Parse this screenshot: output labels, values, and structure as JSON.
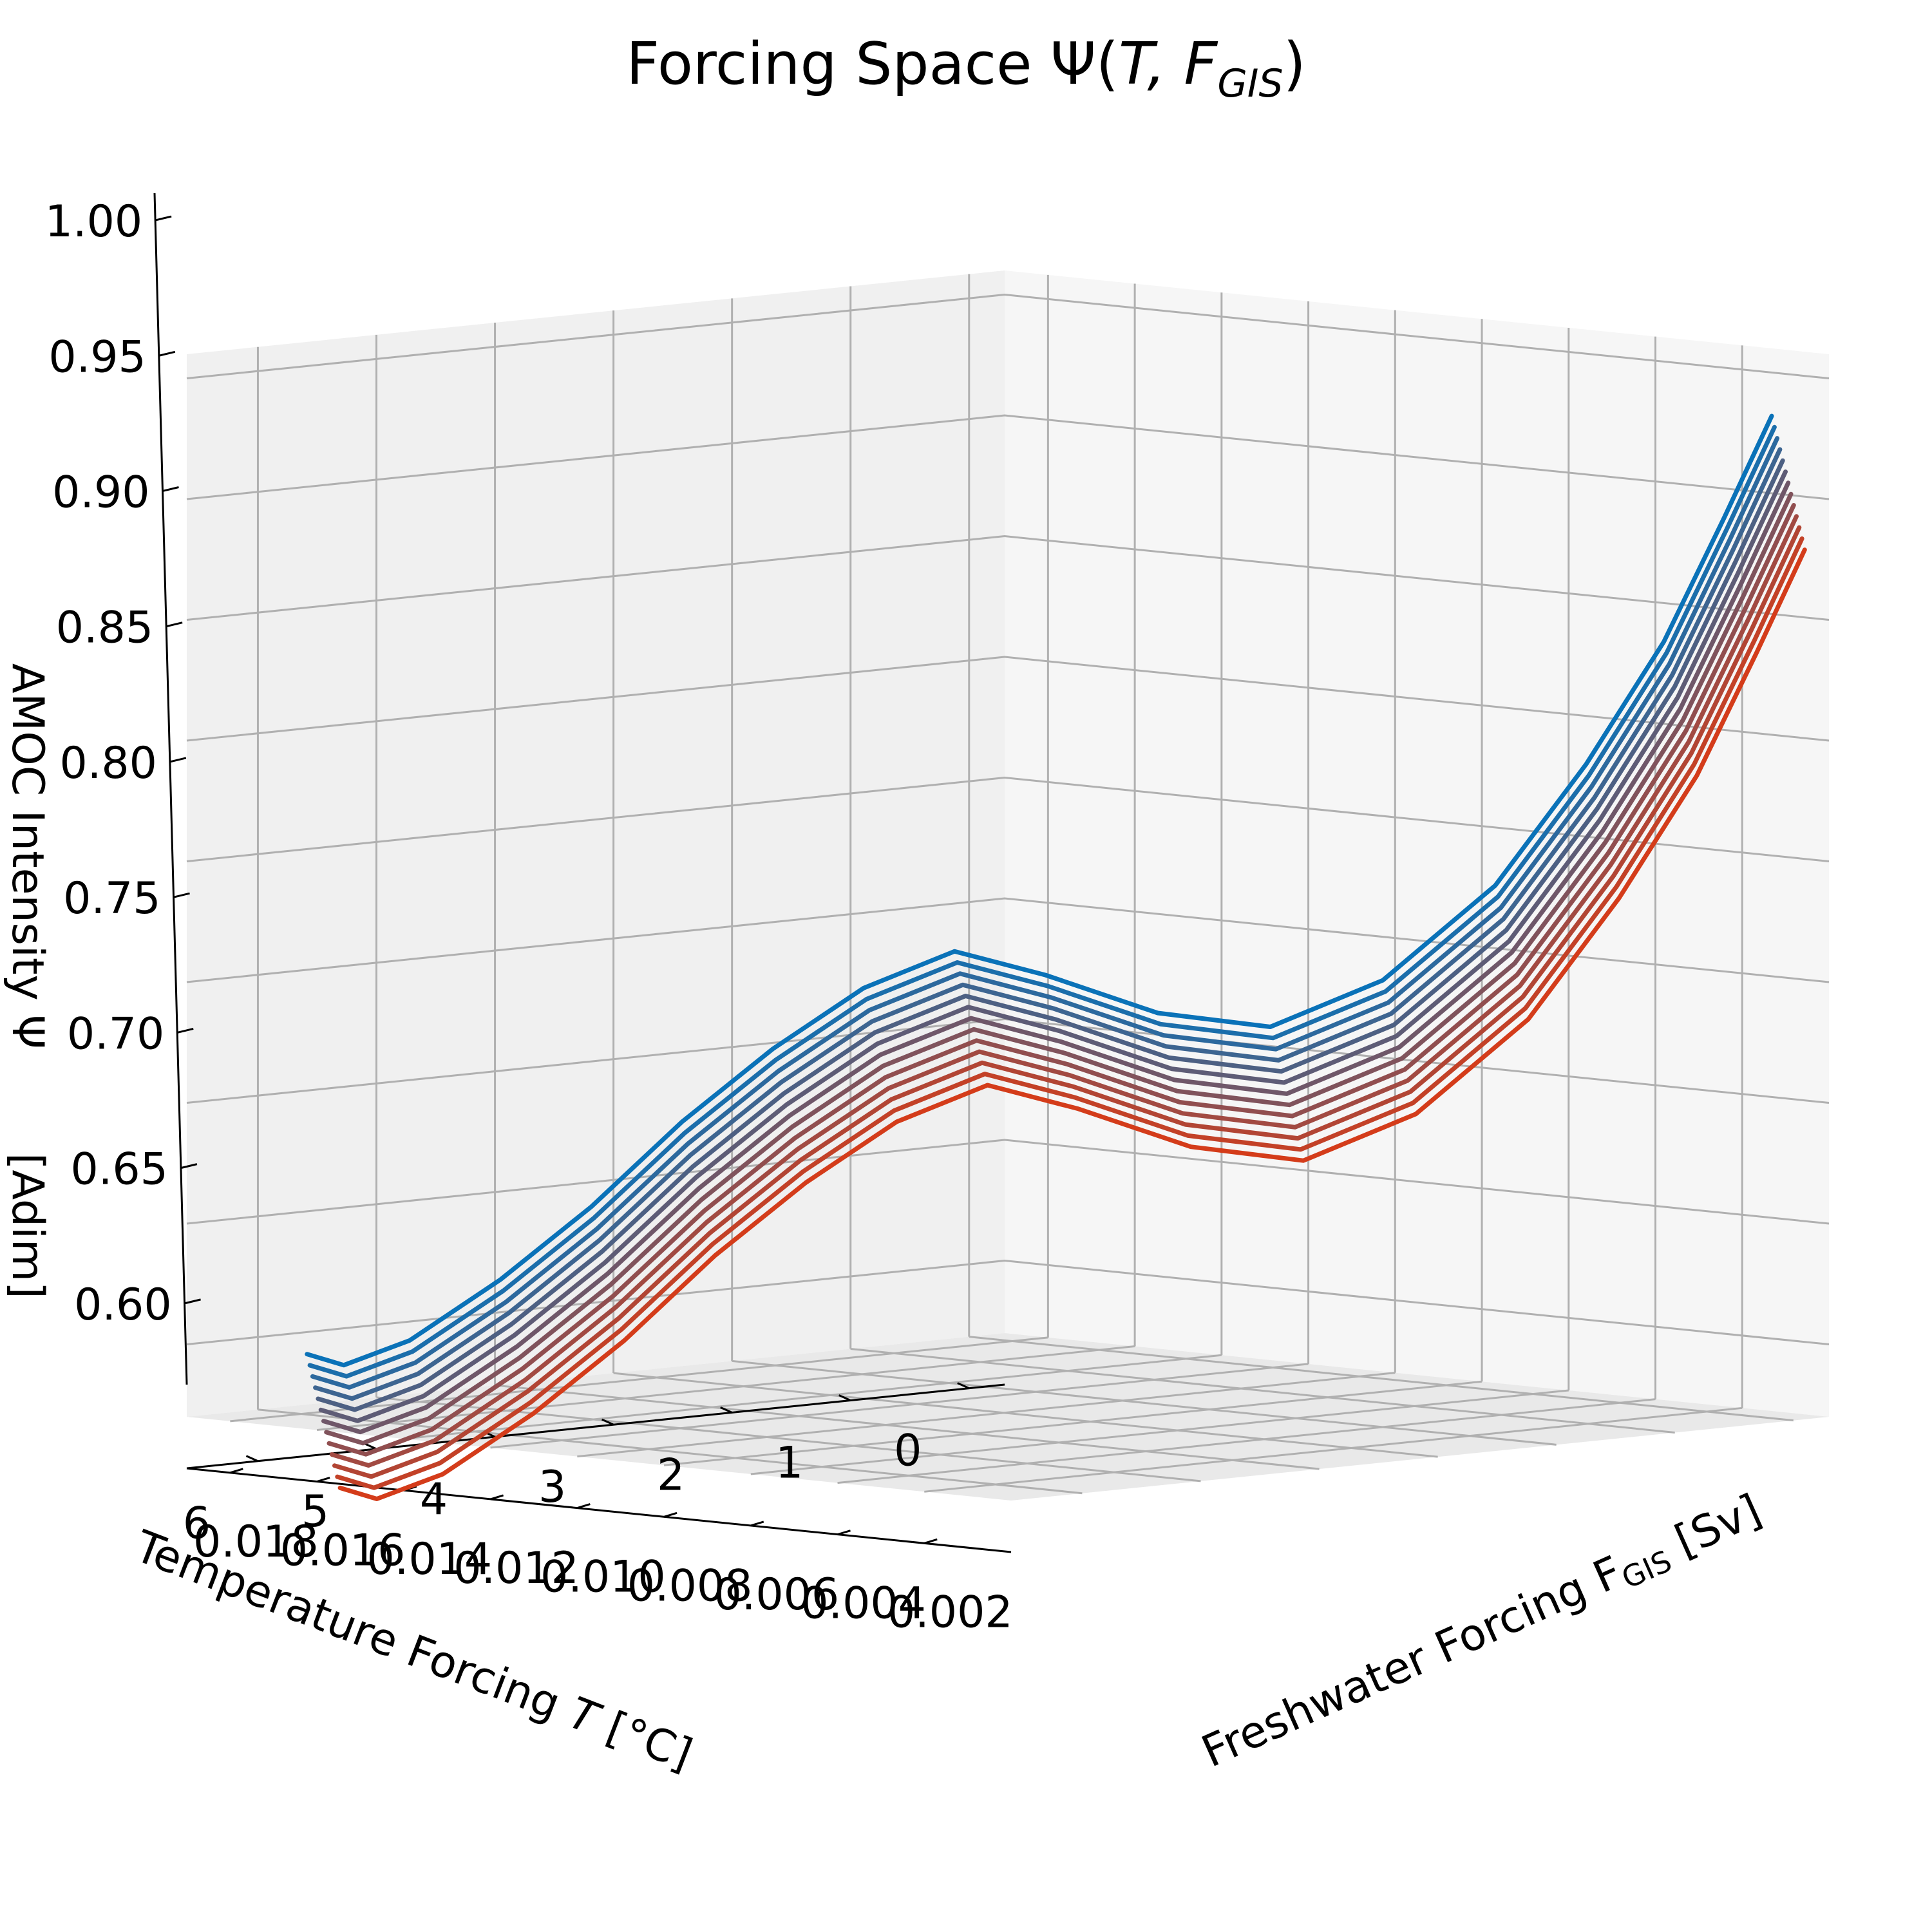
{
  "chart_data": {
    "type": "line",
    "title": "Forcing Space Ψ(T, F_GIS)",
    "title_parts": [
      "Forcing Space Ψ(",
      "T",
      ", F",
      "GIS",
      ")"
    ],
    "xlabel": "Temperature Forcing T   [°C]",
    "xlabel_parts": [
      "Temperature Forcing ",
      "T",
      "   [°C]"
    ],
    "ylabel": "Freshwater Forcing F_GIS [Sv]",
    "ylabel_parts": [
      "Freshwater Forcing F",
      "GIS",
      " [Sv]"
    ],
    "zlabel": "AMOC Intensity Ψ   [Adim]",
    "zlabel_parts": [
      "AMOC Intensity Ψ",
      "[Adim]"
    ],
    "x_ticks": [
      "0",
      "1",
      "2",
      "3",
      "4",
      "5",
      "6"
    ],
    "y_ticks": [
      "0.002",
      "0.004",
      "0.006",
      "0.008",
      "0.010",
      "0.012",
      "0.014",
      "0.016",
      "0.018"
    ],
    "z_ticks": [
      "0.60",
      "0.65",
      "0.70",
      "0.75",
      "0.80",
      "0.85",
      "0.90",
      "0.95",
      "1.00"
    ],
    "xlim": [
      -0.3,
      6.6
    ],
    "ylim": [
      0.0,
      0.019
    ],
    "zlim": [
      0.57,
      1.01
    ],
    "grid": true,
    "color_start": "#0a72b8",
    "color_end": "#d43c1a",
    "series_count": 13,
    "trajectory_T": [
      0.0,
      0.4,
      0.8,
      1.2,
      1.6,
      2.0,
      2.4,
      2.8,
      3.2,
      3.6,
      4.0,
      4.4,
      4.8,
      5.2,
      5.6,
      6.0,
      6.3,
      6.5
    ],
    "trajectory_F": [
      0.0005,
      0.0005,
      0.0008,
      0.0015,
      0.0025,
      0.004,
      0.0055,
      0.007,
      0.0085,
      0.0095,
      0.0105,
      0.0115,
      0.0125,
      0.0135,
      0.0145,
      0.0155,
      0.0162,
      0.0165
    ],
    "trajectory_Psi": [
      0.985,
      0.945,
      0.895,
      0.845,
      0.795,
      0.755,
      0.735,
      0.74,
      0.755,
      0.765,
      0.75,
      0.725,
      0.695,
      0.66,
      0.63,
      0.605,
      0.595,
      0.6
    ],
    "series_T_shift": [
      0.0,
      0.05,
      0.1,
      0.15,
      0.2,
      0.25,
      0.3,
      0.35,
      0.4,
      0.45,
      0.5,
      0.55,
      0.6
    ],
    "series_F_shift": [
      0.0,
      -0.0002,
      -0.0004,
      -0.0006,
      -0.0008,
      -0.001,
      -0.0012,
      -0.0014,
      -0.0016,
      -0.0018,
      -0.002,
      -0.0022,
      -0.0024
    ],
    "series_Psi_shift": [
      0.0,
      -0.004,
      -0.008,
      -0.012,
      -0.016,
      -0.02,
      -0.024,
      -0.028,
      -0.032,
      -0.036,
      -0.04,
      -0.044,
      -0.048
    ]
  }
}
